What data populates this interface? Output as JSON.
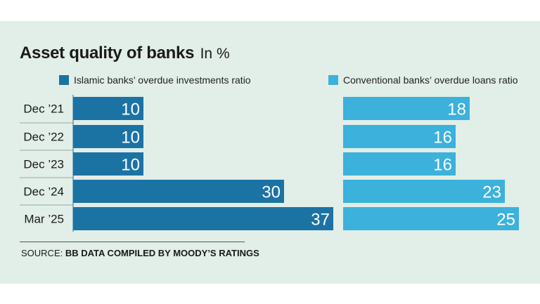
{
  "title": "Asset quality of banks",
  "title_unit": "In %",
  "source_label": "SOURCE:",
  "source_text": "BB DATA COMPILED BY MOODY’S RATINGS",
  "colors": {
    "background": "#e2eee8",
    "islamic": "#1b73a4",
    "conventional": "#3bb1dc",
    "bar_text": "#ffffff"
  },
  "chart_data": {
    "type": "bar",
    "orientation": "horizontal",
    "categories": [
      "Dec ’21",
      "Dec ’22",
      "Dec ’23",
      "Dec ’24",
      "Mar ’25"
    ],
    "series": [
      {
        "name": "Islamic banks’ overdue investments ratio",
        "values": [
          10,
          10,
          10,
          30,
          37
        ]
      },
      {
        "name": "Conventional banks’ overdue loans ratio",
        "values": [
          18,
          16,
          16,
          23,
          25
        ]
      }
    ],
    "legend_placement": "top",
    "grid": false
  }
}
